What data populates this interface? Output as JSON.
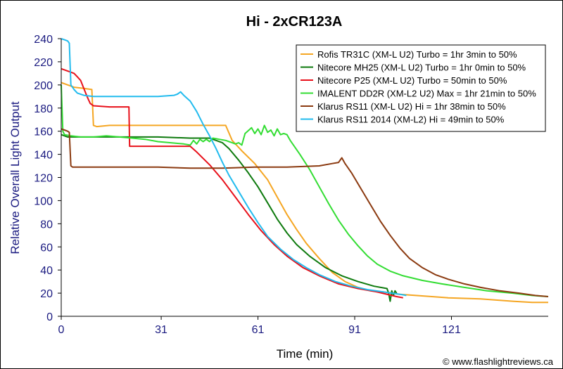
{
  "chart_data": {
    "type": "line",
    "title": "Hi - 2xCR123A",
    "xlabel": "Time (min)",
    "ylabel": "Relative Overall Light Output",
    "xlim": [
      0,
      151
    ],
    "ylim": [
      0,
      240
    ],
    "xticks": [
      0,
      31,
      61,
      91,
      121
    ],
    "yticks": [
      0,
      20,
      40,
      60,
      80,
      100,
      120,
      140,
      160,
      180,
      200,
      220,
      240
    ],
    "grid": false,
    "legend_position": "top-right",
    "copyright": "© www.flashlightreviews.ca",
    "series": [
      {
        "name": "Rofis TR31C (XM-L U2) Turbo = 1hr 3min to 50%",
        "color": "#f5a623",
        "points": [
          [
            0,
            202
          ],
          [
            2,
            200
          ],
          [
            4,
            198
          ],
          [
            7,
            197
          ],
          [
            9.5,
            196
          ],
          [
            10,
            165
          ],
          [
            11,
            164
          ],
          [
            15,
            165
          ],
          [
            30,
            165
          ],
          [
            45,
            165
          ],
          [
            48,
            165
          ],
          [
            51,
            165
          ],
          [
            53,
            152
          ],
          [
            56,
            143
          ],
          [
            60,
            132
          ],
          [
            64,
            118
          ],
          [
            67,
            103
          ],
          [
            70,
            88
          ],
          [
            73,
            75
          ],
          [
            76,
            63
          ],
          [
            80,
            50
          ],
          [
            84,
            38
          ],
          [
            88,
            30
          ],
          [
            92,
            25
          ],
          [
            96,
            22
          ],
          [
            100,
            21
          ],
          [
            105,
            19
          ],
          [
            110,
            18
          ],
          [
            120,
            16
          ],
          [
            130,
            15
          ],
          [
            140,
            13
          ],
          [
            146,
            12
          ],
          [
            151,
            12
          ]
        ]
      },
      {
        "name": "Nitecore MH25 (XM-L U2) Turbo = 1hr 0min to 50%",
        "color": "#0e7a0e",
        "points": [
          [
            0,
            157
          ],
          [
            2,
            155
          ],
          [
            5,
            155
          ],
          [
            10,
            155
          ],
          [
            20,
            155
          ],
          [
            30,
            155
          ],
          [
            40,
            154
          ],
          [
            46,
            154
          ],
          [
            48,
            152
          ],
          [
            50,
            150
          ],
          [
            52,
            145
          ],
          [
            55,
            135
          ],
          [
            58,
            124
          ],
          [
            61,
            112
          ],
          [
            64,
            98
          ],
          [
            67,
            84
          ],
          [
            70,
            72
          ],
          [
            73,
            62
          ],
          [
            77,
            52
          ],
          [
            82,
            42
          ],
          [
            87,
            35
          ],
          [
            92,
            30
          ],
          [
            97,
            26
          ],
          [
            101,
            24
          ],
          [
            101.5,
            20
          ],
          [
            102,
            13
          ],
          [
            102.5,
            22
          ],
          [
            103,
            18
          ],
          [
            103.5,
            22
          ],
          [
            104,
            20
          ]
        ]
      },
      {
        "name": "Nitecore P25 (XM-L U2) Turbo = 50min to 50%",
        "color": "#e8101a",
        "points": [
          [
            0,
            214
          ],
          [
            1,
            213
          ],
          [
            3,
            211
          ],
          [
            4,
            210
          ],
          [
            5,
            207
          ],
          [
            6,
            204
          ],
          [
            8,
            190
          ],
          [
            9,
            184
          ],
          [
            10,
            182
          ],
          [
            15,
            181
          ],
          [
            20,
            181
          ],
          [
            21,
            181
          ],
          [
            21.2,
            147
          ],
          [
            25,
            147
          ],
          [
            30,
            147
          ],
          [
            35,
            147
          ],
          [
            40,
            147
          ],
          [
            42,
            142
          ],
          [
            46,
            131
          ],
          [
            50,
            118
          ],
          [
            54,
            103
          ],
          [
            58,
            88
          ],
          [
            62,
            74
          ],
          [
            66,
            62
          ],
          [
            70,
            52
          ],
          [
            75,
            42
          ],
          [
            80,
            35
          ],
          [
            86,
            28
          ],
          [
            92,
            24
          ],
          [
            98,
            21
          ],
          [
            104,
            17
          ],
          [
            106,
            16
          ]
        ]
      },
      {
        "name": "IMALENT DD2R (XM-L2 U2) Max = 1hr 21min to 50%",
        "color": "#33dd33",
        "points": [
          [
            0,
            200
          ],
          [
            0.5,
            160
          ],
          [
            1,
            157
          ],
          [
            3,
            156
          ],
          [
            6,
            155
          ],
          [
            10,
            155
          ],
          [
            14,
            156
          ],
          [
            18,
            155
          ],
          [
            22,
            154
          ],
          [
            26,
            153
          ],
          [
            30,
            151
          ],
          [
            34,
            150
          ],
          [
            38,
            149
          ],
          [
            40,
            148
          ],
          [
            41,
            152
          ],
          [
            42,
            149
          ],
          [
            43,
            153
          ],
          [
            44,
            151
          ],
          [
            45,
            153
          ],
          [
            46,
            151
          ],
          [
            47,
            154
          ],
          [
            49,
            153
          ],
          [
            51,
            152
          ],
          [
            53,
            150
          ],
          [
            54,
            149
          ],
          [
            55,
            150
          ],
          [
            56,
            148
          ],
          [
            57,
            158
          ],
          [
            59,
            163
          ],
          [
            60,
            158
          ],
          [
            61,
            162
          ],
          [
            62,
            157
          ],
          [
            63,
            165
          ],
          [
            64,
            159
          ],
          [
            65,
            161
          ],
          [
            66,
            156
          ],
          [
            67,
            162
          ],
          [
            68,
            157
          ],
          [
            69,
            158
          ],
          [
            70,
            157
          ],
          [
            71,
            152
          ],
          [
            72,
            148
          ],
          [
            74,
            140
          ],
          [
            77,
            127
          ],
          [
            80,
            112
          ],
          [
            83,
            97
          ],
          [
            86,
            83
          ],
          [
            89,
            71
          ],
          [
            92,
            61
          ],
          [
            95,
            52
          ],
          [
            98,
            45
          ],
          [
            102,
            39
          ],
          [
            106,
            35
          ],
          [
            112,
            31
          ],
          [
            118,
            28
          ],
          [
            125,
            25
          ],
          [
            132,
            22
          ],
          [
            140,
            20
          ],
          [
            146,
            18
          ],
          [
            151,
            17
          ]
        ]
      },
      {
        "name": "Klarus RS11 (XM-L U2) Hi = 1hr 38min to 50%",
        "color": "#8b3a10",
        "points": [
          [
            0,
            162
          ],
          [
            1,
            161
          ],
          [
            2,
            160
          ],
          [
            2.5,
            159
          ],
          [
            3,
            130
          ],
          [
            3.5,
            129
          ],
          [
            10,
            129
          ],
          [
            20,
            129
          ],
          [
            30,
            129
          ],
          [
            40,
            128
          ],
          [
            50,
            128
          ],
          [
            60,
            129
          ],
          [
            70,
            129
          ],
          [
            80,
            130
          ],
          [
            84,
            132
          ],
          [
            86,
            133
          ],
          [
            87,
            137
          ],
          [
            88,
            132
          ],
          [
            90,
            124
          ],
          [
            93,
            110
          ],
          [
            96,
            96
          ],
          [
            99,
            82
          ],
          [
            102,
            70
          ],
          [
            105,
            59
          ],
          [
            108,
            50
          ],
          [
            112,
            42
          ],
          [
            116,
            36
          ],
          [
            120,
            32
          ],
          [
            125,
            28
          ],
          [
            130,
            25
          ],
          [
            136,
            22
          ],
          [
            142,
            20
          ],
          [
            147,
            18
          ],
          [
            151,
            17
          ]
        ]
      },
      {
        "name": "Klarus RS11 2014 (XM-L2) Hi = 49min to 50%",
        "color": "#22bbee",
        "points": [
          [
            0,
            240
          ],
          [
            1,
            239
          ],
          [
            2,
            238
          ],
          [
            2.5,
            236
          ],
          [
            3,
            200
          ],
          [
            4,
            196
          ],
          [
            5,
            193
          ],
          [
            7,
            191
          ],
          [
            10,
            190
          ],
          [
            15,
            190
          ],
          [
            20,
            190
          ],
          [
            25,
            190
          ],
          [
            30,
            190
          ],
          [
            35,
            191
          ],
          [
            36,
            192
          ],
          [
            37,
            194
          ],
          [
            38,
            191
          ],
          [
            40,
            186
          ],
          [
            42,
            177
          ],
          [
            44,
            166
          ],
          [
            46,
            156
          ],
          [
            48,
            145
          ],
          [
            50,
            133
          ],
          [
            52,
            122
          ],
          [
            55,
            108
          ],
          [
            58,
            94
          ],
          [
            61,
            81
          ],
          [
            64,
            69
          ],
          [
            68,
            58
          ],
          [
            72,
            49
          ],
          [
            76,
            42
          ],
          [
            80,
            36
          ],
          [
            85,
            30
          ],
          [
            90,
            26
          ],
          [
            95,
            23
          ],
          [
            100,
            21
          ],
          [
            105,
            19
          ],
          [
            107,
            18
          ]
        ]
      }
    ]
  }
}
